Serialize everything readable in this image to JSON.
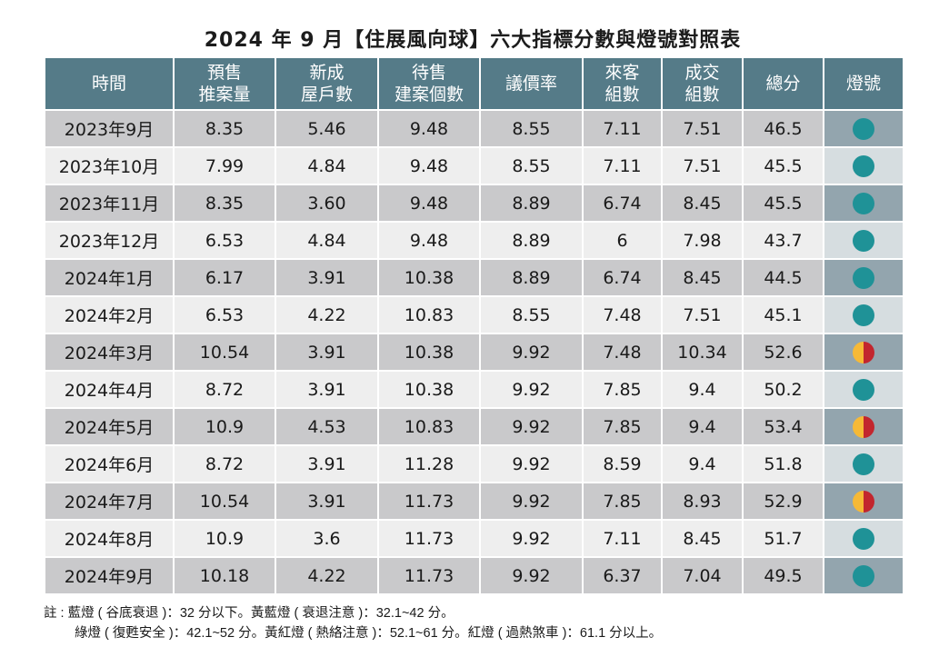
{
  "title": "2024 年 9 月【住展風向球】六大指標分數與燈號對照表",
  "colors": {
    "header_bg": "#557b88",
    "row_dark": "#c9c9cb",
    "row_light": "#eeeeee",
    "light_col_dark": "#93a5ae",
    "light_col_light": "#d6dde0",
    "teal_light": "#1f9297",
    "yellow_light": "#f6b936",
    "red_light": "#c2262e"
  },
  "table": {
    "headers": [
      {
        "line1": "時間",
        "line2": ""
      },
      {
        "line1": "預售",
        "line2": "推案量"
      },
      {
        "line1": "新成",
        "line2": "屋戶數"
      },
      {
        "line1": "待售",
        "line2": "建案個數"
      },
      {
        "line1": "議價率",
        "line2": ""
      },
      {
        "line1": "來客",
        "line2": "組數"
      },
      {
        "line1": "成交",
        "line2": "組數"
      },
      {
        "line1": "總分",
        "line2": ""
      },
      {
        "line1": "燈號",
        "line2": ""
      }
    ],
    "rows": [
      {
        "time": "2023年9月",
        "presale": "8.35",
        "new_units": "5.46",
        "unsold": "9.48",
        "bargain": "8.55",
        "visitors": "7.11",
        "deals": "7.51",
        "total": "46.5",
        "light": "teal",
        "light_label": "綠燈"
      },
      {
        "time": "2023年10月",
        "presale": "7.99",
        "new_units": "4.84",
        "unsold": "9.48",
        "bargain": "8.55",
        "visitors": "7.11",
        "deals": "7.51",
        "total": "45.5",
        "light": "teal",
        "light_label": "綠燈"
      },
      {
        "time": "2023年11月",
        "presale": "8.35",
        "new_units": "3.60",
        "unsold": "9.48",
        "bargain": "8.89",
        "visitors": "6.74",
        "deals": "8.45",
        "total": "45.5",
        "light": "teal",
        "light_label": "綠燈"
      },
      {
        "time": "2023年12月",
        "presale": "6.53",
        "new_units": "4.84",
        "unsold": "9.48",
        "bargain": "8.89",
        "visitors": "6",
        "deals": "7.98",
        "total": "43.7",
        "light": "teal",
        "light_label": "綠燈"
      },
      {
        "time": "2024年1月",
        "presale": "6.17",
        "new_units": "3.91",
        "unsold": "10.38",
        "bargain": "8.89",
        "visitors": "6.74",
        "deals": "8.45",
        "total": "44.5",
        "light": "teal",
        "light_label": "綠燈"
      },
      {
        "time": "2024年2月",
        "presale": "6.53",
        "new_units": "4.22",
        "unsold": "10.83",
        "bargain": "8.55",
        "visitors": "7.48",
        "deals": "7.51",
        "total": "45.1",
        "light": "teal",
        "light_label": "綠燈"
      },
      {
        "time": "2024年3月",
        "presale": "10.54",
        "new_units": "3.91",
        "unsold": "10.38",
        "bargain": "9.92",
        "visitors": "7.48",
        "deals": "10.34",
        "total": "52.6",
        "light": "split",
        "light_label": "黃紅燈"
      },
      {
        "time": "2024年4月",
        "presale": "8.72",
        "new_units": "3.91",
        "unsold": "10.38",
        "bargain": "9.92",
        "visitors": "7.85",
        "deals": "9.4",
        "total": "50.2",
        "light": "teal",
        "light_label": "綠燈"
      },
      {
        "time": "2024年5月",
        "presale": "10.9",
        "new_units": "4.53",
        "unsold": "10.83",
        "bargain": "9.92",
        "visitors": "7.85",
        "deals": "9.4",
        "total": "53.4",
        "light": "split",
        "light_label": "黃紅燈"
      },
      {
        "time": "2024年6月",
        "presale": "8.72",
        "new_units": "3.91",
        "unsold": "11.28",
        "bargain": "9.92",
        "visitors": "8.59",
        "deals": "9.4",
        "total": "51.8",
        "light": "teal",
        "light_label": "綠燈"
      },
      {
        "time": "2024年7月",
        "presale": "10.54",
        "new_units": "3.91",
        "unsold": "11.73",
        "bargain": "9.92",
        "visitors": "7.85",
        "deals": "8.93",
        "total": "52.9",
        "light": "split",
        "light_label": "黃紅燈"
      },
      {
        "time": "2024年8月",
        "presale": "10.9",
        "new_units": "3.6",
        "unsold": "11.73",
        "bargain": "9.92",
        "visitors": "7.11",
        "deals": "8.45",
        "total": "51.7",
        "light": "teal",
        "light_label": "綠燈"
      },
      {
        "time": "2024年9月",
        "presale": "10.18",
        "new_units": "4.22",
        "unsold": "11.73",
        "bargain": "9.92",
        "visitors": "6.37",
        "deals": "7.04",
        "total": "49.5",
        "light": "teal",
        "light_label": "綠燈"
      }
    ]
  },
  "notes": {
    "line1": "註 : 藍燈 ( 谷底衰退 )：32 分以下。黃藍燈 ( 衰退注意 )：32.1~42 分。",
    "line2": "綠燈 ( 復甦安全 )：42.1~52 分。黃紅燈 ( 熱絡注意 )：52.1~61 分。紅燈 ( 過熱煞車 )：61.1 分以上。"
  }
}
